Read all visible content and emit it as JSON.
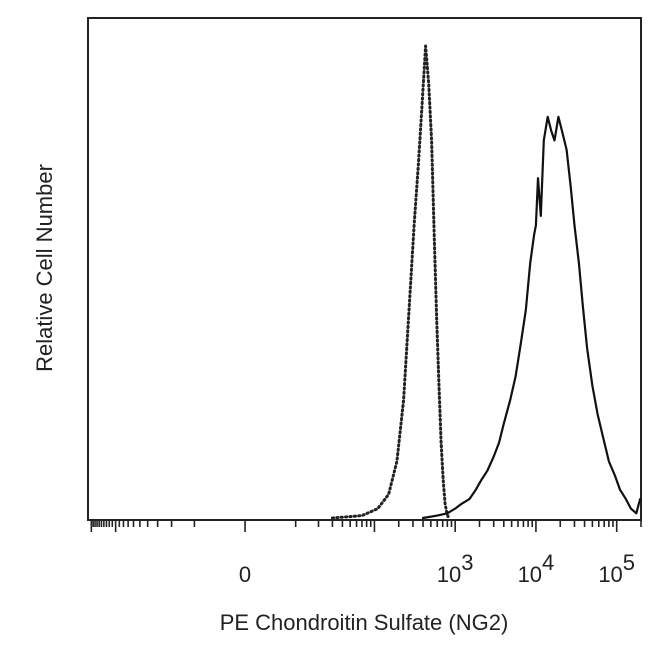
{
  "chart_data": {
    "type": "line",
    "title": "",
    "xlabel": "PE  Chondroitin Sulfate (NG2)",
    "ylabel": "Relative Cell Number",
    "x_scale": "biexponential",
    "xlim": [
      -220,
      200000
    ],
    "ylim": [
      0,
      100
    ],
    "grid": false,
    "legend": "none",
    "x_tick_labels": [
      {
        "value": 0,
        "base": "0",
        "exponent": ""
      },
      {
        "value": 1000,
        "base": "10",
        "exponent": "3"
      },
      {
        "value": 10000,
        "base": "10",
        "exponent": "4"
      },
      {
        "value": 100000,
        "base": "10",
        "exponent": "5"
      }
    ],
    "series": [
      {
        "style": "dotted",
        "color": "#222222",
        "x": [
          30,
          70,
          110,
          150,
          190,
          230,
          270,
          310,
          350,
          390,
          430,
          470,
          510,
          550,
          590,
          630,
          670,
          710,
          750,
          790,
          830,
          870
        ],
        "y": [
          0,
          0.5,
          2,
          5,
          12,
          25,
          45,
          62,
          75,
          88,
          100,
          92,
          80,
          60,
          42,
          28,
          16,
          8,
          3,
          1,
          0,
          0
        ]
      },
      {
        "style": "solid",
        "color": "#111111",
        "x": [
          400,
          600,
          800,
          1000,
          1200,
          1500,
          1800,
          2100,
          2500,
          3000,
          3500,
          4000,
          4800,
          5600,
          6500,
          7500,
          8500,
          9500,
          10000,
          10600,
          11500,
          12500,
          14000,
          15500,
          17000,
          19000,
          21000,
          24000,
          27000,
          30000,
          34000,
          38000,
          43000,
          50000,
          58000,
          68000,
          80000,
          95000,
          110000,
          130000,
          150000,
          175000,
          195000
        ],
        "y": [
          0,
          0.5,
          1,
          2,
          3,
          4,
          6,
          8,
          10,
          13,
          16,
          20,
          25,
          30,
          37,
          44,
          54,
          60,
          62,
          72,
          64,
          80,
          85,
          82,
          80,
          85,
          82,
          78,
          70,
          62,
          54,
          45,
          36,
          28,
          22,
          17,
          12,
          9,
          6,
          4,
          2,
          1,
          4
        ]
      }
    ]
  }
}
